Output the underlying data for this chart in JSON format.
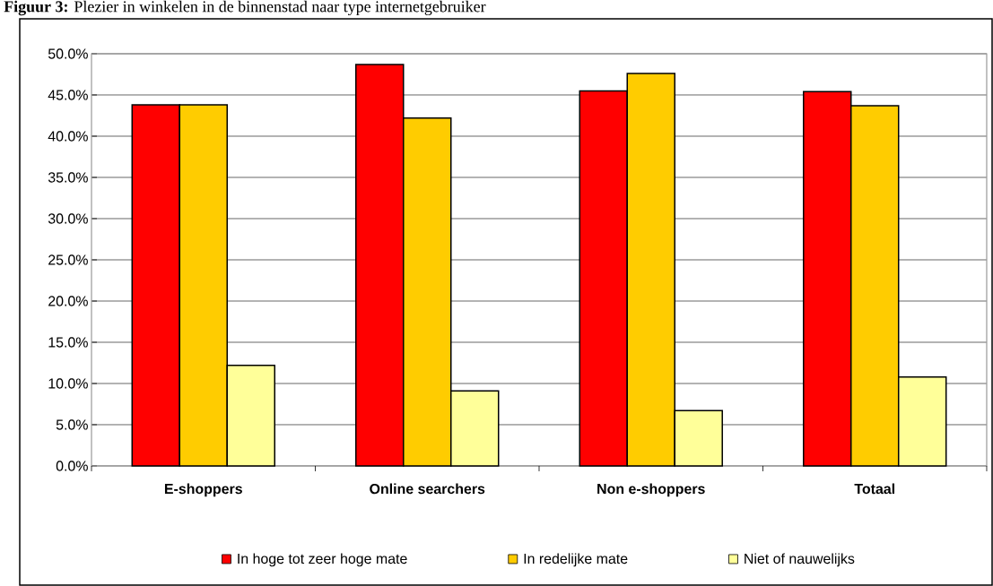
{
  "chart_data": {
    "type": "bar",
    "title": "**Figuur 3:** Plezier in winkelen in de binnenstad naar type internetgebruiker",
    "categories": [
      "E-shoppers",
      "Online searchers",
      "Non e-shoppers",
      "Totaal"
    ],
    "series": [
      {
        "name": "In hoge tot zeer hoge mate",
        "color": "#ff0000",
        "values": [
          43.8,
          48.7,
          45.5,
          45.4
        ]
      },
      {
        "name": "In redelijke mate",
        "color": "#ffcc00",
        "values": [
          43.8,
          42.2,
          47.6,
          43.7
        ]
      },
      {
        "name": "Niet of nauwelijks",
        "color": "#ffff99",
        "values": [
          12.2,
          9.1,
          6.7,
          10.8
        ]
      }
    ],
    "ylim": [
      0,
      50
    ],
    "yticks": [
      {
        "value": 0,
        "label": "0.0%"
      },
      {
        "value": 5,
        "label": "5.0%"
      },
      {
        "value": 10,
        "label": "10.0%"
      },
      {
        "value": 15,
        "label": "15.0%"
      },
      {
        "value": 20,
        "label": "20.0%"
      },
      {
        "value": 25,
        "label": "25.0%"
      },
      {
        "value": 30,
        "label": "30.0%"
      },
      {
        "value": 35,
        "label": "35.0%"
      },
      {
        "value": 40,
        "label": "40.0%"
      },
      {
        "value": 45,
        "label": "45.0%"
      },
      {
        "value": 50,
        "label": "50.0%"
      }
    ],
    "grid": "y",
    "legend": "bottom"
  }
}
